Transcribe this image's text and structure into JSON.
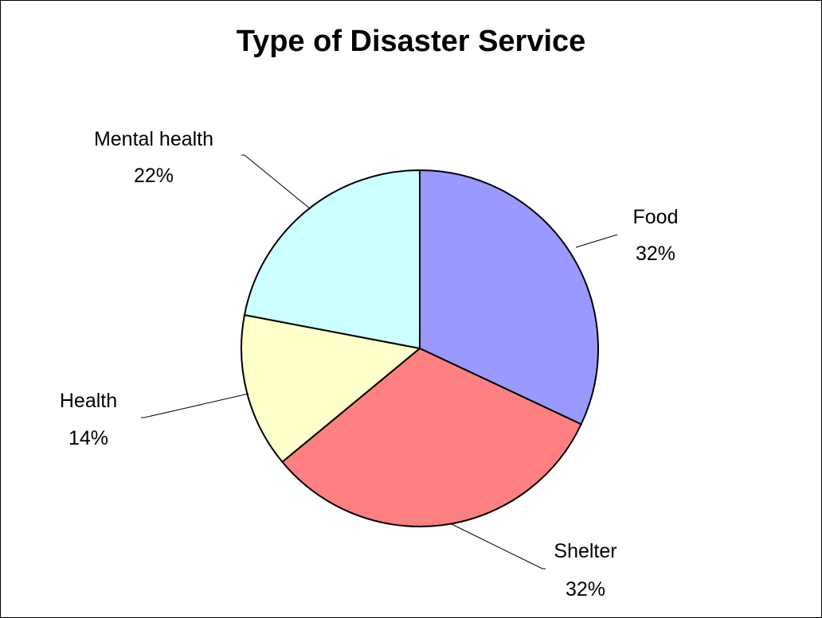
{
  "chart_data": {
    "type": "pie",
    "title": "Type of Disaster Service",
    "categories": [
      "Food",
      "Shelter",
      "Health",
      "Mental health"
    ],
    "values": [
      32,
      32,
      14,
      22
    ],
    "value_labels": [
      "32%",
      "32%",
      "14%",
      "22%"
    ],
    "colors": [
      "#9999FF",
      "#FF8080",
      "#FFFFCC",
      "#CCFFFF"
    ],
    "start_angle_deg": 0,
    "direction": "clockwise",
    "legend": "none",
    "labels_outside_with_leaders": true
  }
}
